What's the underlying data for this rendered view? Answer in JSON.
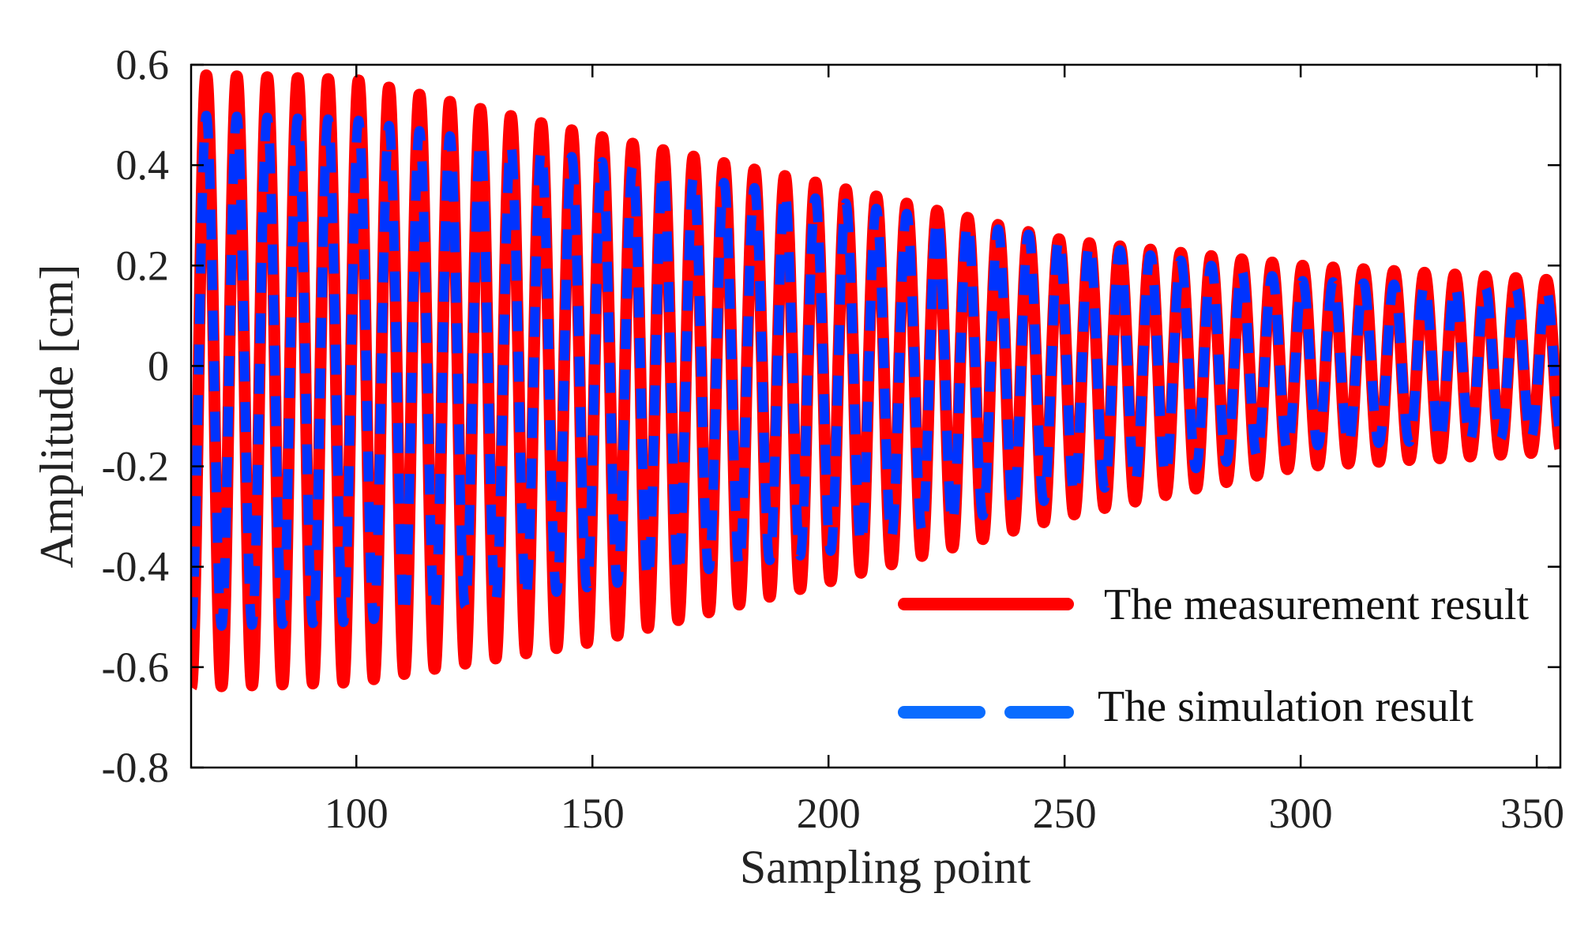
{
  "chart_data": {
    "type": "line",
    "title": "",
    "xlabel": "Sampling point",
    "ylabel": "Amplitude [cm]",
    "xlim": [
      65,
      355
    ],
    "ylim": [
      -0.8,
      0.6
    ],
    "x_ticks": [
      100,
      150,
      200,
      250,
      300,
      350
    ],
    "x_tick_labels": [
      "100",
      "150",
      "200",
      "250",
      "300",
      "350"
    ],
    "y_ticks": [
      -0.8,
      -0.6,
      -0.4,
      -0.2,
      0,
      0.2,
      0.4,
      0.6
    ],
    "y_tick_labels": [
      "-0.8",
      "-0.6",
      "-0.4",
      "-0.2",
      "0",
      "0.2",
      "0.4",
      "0.6"
    ],
    "grid": false,
    "legend_position": "bottom-right",
    "oscillation_period": 6.45,
    "series": [
      {
        "name": "The measurement result",
        "style": "solid",
        "color": "#ff0000",
        "start_x": 65,
        "envelope": [
          {
            "x": 65,
            "upper": 0.58,
            "lower": -0.64
          },
          {
            "x": 100,
            "upper": 0.57,
            "lower": -0.63
          },
          {
            "x": 150,
            "upper": 0.46,
            "lower": -0.55
          },
          {
            "x": 200,
            "upper": 0.36,
            "lower": -0.43
          },
          {
            "x": 250,
            "upper": 0.25,
            "lower": -0.3
          },
          {
            "x": 300,
            "upper": 0.2,
            "lower": -0.2
          },
          {
            "x": 355,
            "upper": 0.17,
            "lower": -0.17
          }
        ]
      },
      {
        "name": "The simulation result",
        "style": "dashed",
        "color": "#0033ff",
        "legend_color": "#0a6cff",
        "start_x": 65,
        "envelope": [
          {
            "x": 65,
            "upper": 0.5,
            "lower": -0.52
          },
          {
            "x": 100,
            "upper": 0.49,
            "lower": -0.51
          },
          {
            "x": 150,
            "upper": 0.41,
            "lower": -0.44
          },
          {
            "x": 200,
            "upper": 0.33,
            "lower": -0.37
          },
          {
            "x": 250,
            "upper": 0.25,
            "lower": -0.26
          },
          {
            "x": 300,
            "upper": 0.17,
            "lower": -0.16
          },
          {
            "x": 355,
            "upper": 0.15,
            "lower": -0.14
          }
        ]
      }
    ]
  }
}
